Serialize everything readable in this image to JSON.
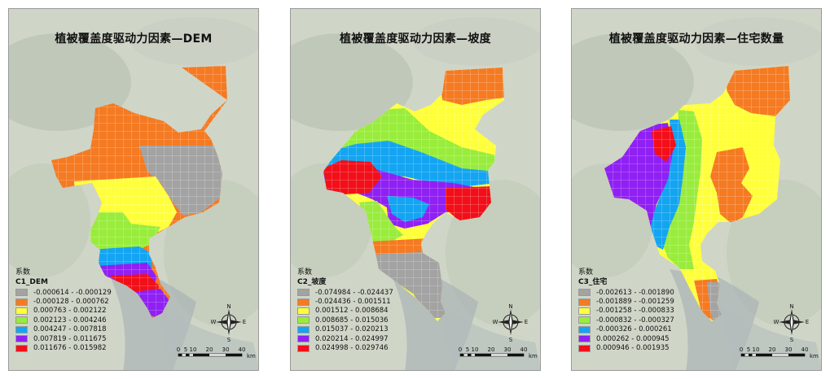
{
  "panels": [
    {
      "title": "植被覆盖度驱动力因素—DEM",
      "legend_title": "系数",
      "legend_field": "C1_DEM",
      "classes": [
        {
          "label": "-0.000614 - -0.000129",
          "color": "#a3a3a3"
        },
        {
          "label": "-0.000128 - 0.000762",
          "color": "#f57a22"
        },
        {
          "label": "0.000763 - 0.002122",
          "color": "#ffff3a"
        },
        {
          "label": "0.002123 - 0.004246",
          "color": "#99ec3c"
        },
        {
          "label": "0.004247 - 0.007818",
          "color": "#14a5f2"
        },
        {
          "label": "0.007819 - 0.011675",
          "color": "#9020f4"
        },
        {
          "label": "0.011676 - 0.015982",
          "color": "#f20f19"
        }
      ]
    },
    {
      "title": "植被覆盖度驱动力因素—坡度",
      "legend_title": "系数",
      "legend_field": "C2_坡度",
      "classes": [
        {
          "label": "-0.074984 - -0.024437",
          "color": "#a3a3a3"
        },
        {
          "label": "-0.024436 - 0.001511",
          "color": "#f57a22"
        },
        {
          "label": "0.001512 - 0.008684",
          "color": "#ffff3a"
        },
        {
          "label": "0.008685 - 0.015036",
          "color": "#99ec3c"
        },
        {
          "label": "0.015037 - 0.020213",
          "color": "#14a5f2"
        },
        {
          "label": "0.020214 - 0.024997",
          "color": "#9020f4"
        },
        {
          "label": "0.024998 - 0.029746",
          "color": "#f20f19"
        }
      ]
    },
    {
      "title": "植被覆盖度驱动力因素—住宅数量",
      "legend_title": "系数",
      "legend_field": "C3_住宅",
      "classes": [
        {
          "label": "-0.002613 - -0.001890",
          "color": "#a3a3a3"
        },
        {
          "label": "-0.001889 - -0.001259",
          "color": "#f57a22"
        },
        {
          "label": "-0.001258 - -0.000833",
          "color": "#ffff3a"
        },
        {
          "label": "-0.000832 - -0.000327",
          "color": "#99ec3c"
        },
        {
          "label": "-0.000326 - 0.000261",
          "color": "#14a5f2"
        },
        {
          "label": "0.000262 - 0.000945",
          "color": "#9020f4"
        },
        {
          "label": "0.000946 - 0.001935",
          "color": "#f20f19"
        }
      ]
    }
  ],
  "compass": {
    "n": "N",
    "s": "S",
    "e": "E",
    "w": "W"
  },
  "scale": {
    "ticks": [
      "0",
      "5",
      "10",
      "20",
      "30",
      "40"
    ],
    "unit": "km"
  }
}
